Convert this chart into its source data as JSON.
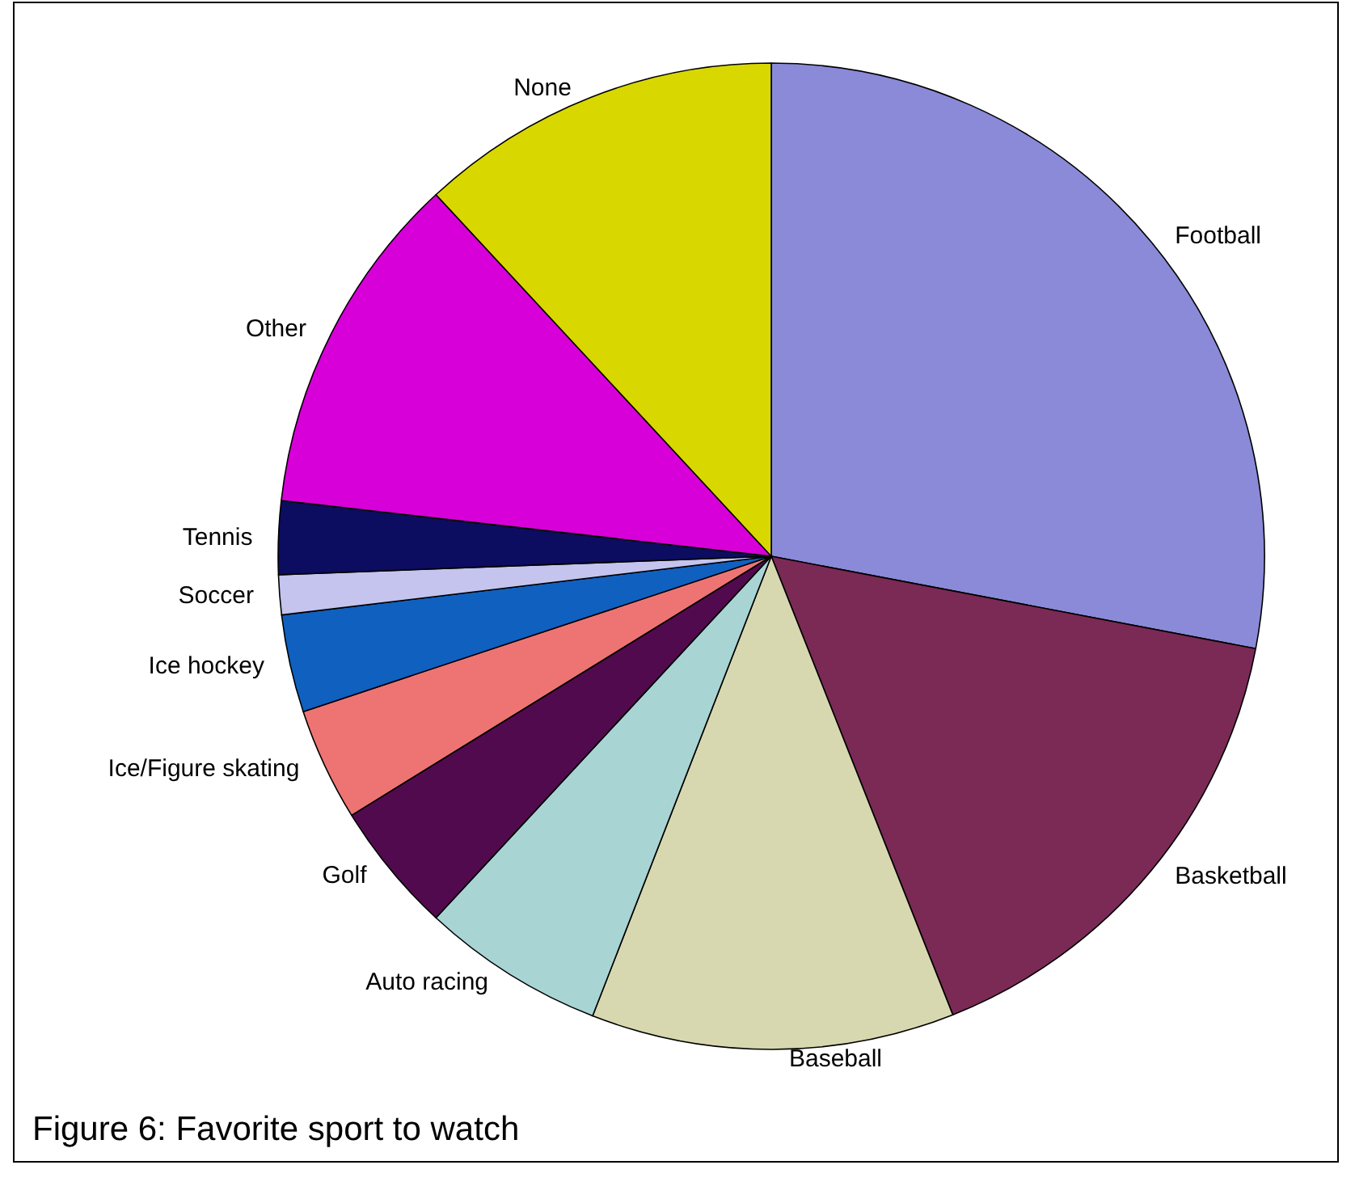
{
  "chart_data": {
    "type": "pie",
    "title": "Figure 6: Favorite sport to watch",
    "categories": [
      "Football",
      "Basketball",
      "Baseball",
      "Auto racing",
      "Golf",
      "Ice/Figure skating",
      "Ice hockey",
      "Soccer",
      "Tennis",
      "Other",
      "None"
    ],
    "values": [
      28.0,
      16.0,
      11.9,
      6.0,
      4.3,
      3.7,
      3.2,
      1.3,
      2.4,
      11.3,
      11.9
    ],
    "colors": [
      "#8a8ad8",
      "#7a2a55",
      "#d8d8b0",
      "#a8d4d4",
      "#520a4e",
      "#ee7474",
      "#1060c0",
      "#c4c4ee",
      "#0c0c60",
      "#d800d8",
      "#d8d800"
    ],
    "legend": false
  }
}
